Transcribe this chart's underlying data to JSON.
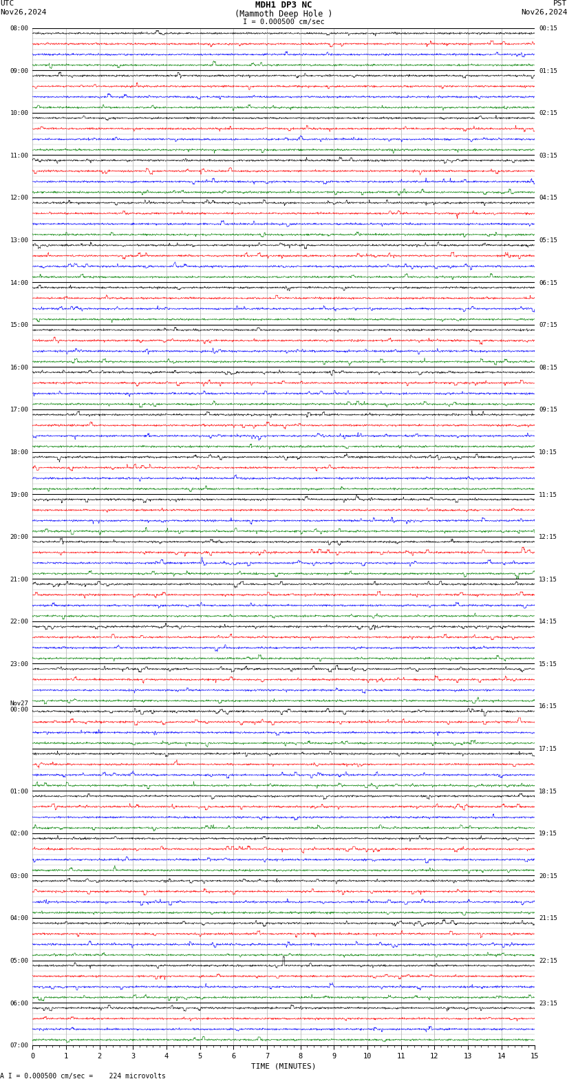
{
  "title_line1": "MDH1 DP3 NC",
  "title_line2": "(Mammoth Deep Hole )",
  "scale_text": "I = 0.000500 cm/sec",
  "utc_label": "UTC",
  "utc_date": "Nov26,2024",
  "pst_label": "PST",
  "pst_date": "Nov26,2024",
  "bottom_label": "A I = 0.000500 cm/sec =    224 microvolts",
  "xlabel": "TIME (MINUTES)",
  "left_times": [
    "08:00",
    "09:00",
    "10:00",
    "11:00",
    "12:00",
    "13:00",
    "14:00",
    "15:00",
    "16:00",
    "17:00",
    "18:00",
    "19:00",
    "20:00",
    "21:00",
    "22:00",
    "23:00",
    "Nov27",
    "00:00",
    "01:00",
    "02:00",
    "03:00",
    "04:00",
    "05:00",
    "06:00",
    "07:00"
  ],
  "right_times": [
    "00:15",
    "01:15",
    "02:15",
    "03:15",
    "04:15",
    "05:15",
    "06:15",
    "07:15",
    "08:15",
    "09:15",
    "10:15",
    "11:15",
    "12:15",
    "13:15",
    "14:15",
    "15:15",
    "16:15",
    "17:15",
    "18:15",
    "19:15",
    "20:15",
    "21:15",
    "22:15",
    "23:15"
  ],
  "n_rows": 24,
  "n_traces_per_row": 4,
  "minutes_per_row": 15,
  "bg_color": "#ffffff",
  "grid_color": "#999999",
  "row_border_color": "#000000",
  "trace_colors": [
    "#000000",
    "#ff0000",
    "#0000ff",
    "#008000"
  ],
  "special_event_row": 23,
  "special_event_minute": 7.5,
  "x_ticks": [
    0,
    1,
    2,
    3,
    4,
    5,
    6,
    7,
    8,
    9,
    10,
    11,
    12,
    13,
    14,
    15
  ]
}
